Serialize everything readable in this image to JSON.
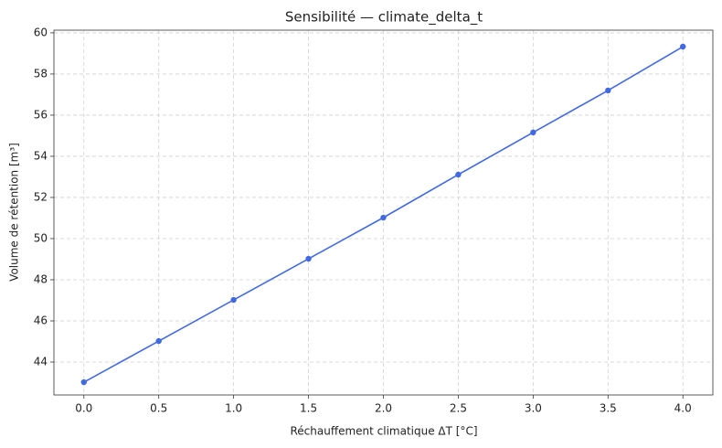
{
  "chart_data": {
    "type": "line",
    "title": "Sensibilité — climate_delta_t",
    "x_label": "Réchauffement climatique ΔT [°C]",
    "y_label": "Volume de rétention [m³]",
    "x": [
      0,
      0.5,
      1,
      1.5,
      2,
      2.5,
      3,
      3.5,
      4
    ],
    "series": [
      {
        "name": "climate_delta_t",
        "color": "#4169e1",
        "values": [
          43.02,
          45.02,
          47.02,
          49.02,
          51.02,
          53.11,
          55.16,
          57.2,
          59.33
        ]
      }
    ],
    "xlim": [
      -0.2,
      4.2
    ],
    "xticks": [
      {
        "value": 0,
        "label": "0.0"
      },
      0.5,
      {
        "value": 1,
        "label": "1.0"
      },
      1.5,
      {
        "value": 2,
        "label": "2.0"
      },
      2.5,
      {
        "value": 3,
        "label": "3.0"
      },
      3.5,
      {
        "value": 4,
        "label": "4.0"
      }
    ],
    "ylim": [
      42.4,
      60.13
    ],
    "yticks": [
      44,
      46,
      48,
      50,
      52,
      54,
      56,
      58,
      60
    ],
    "grid": true
  }
}
